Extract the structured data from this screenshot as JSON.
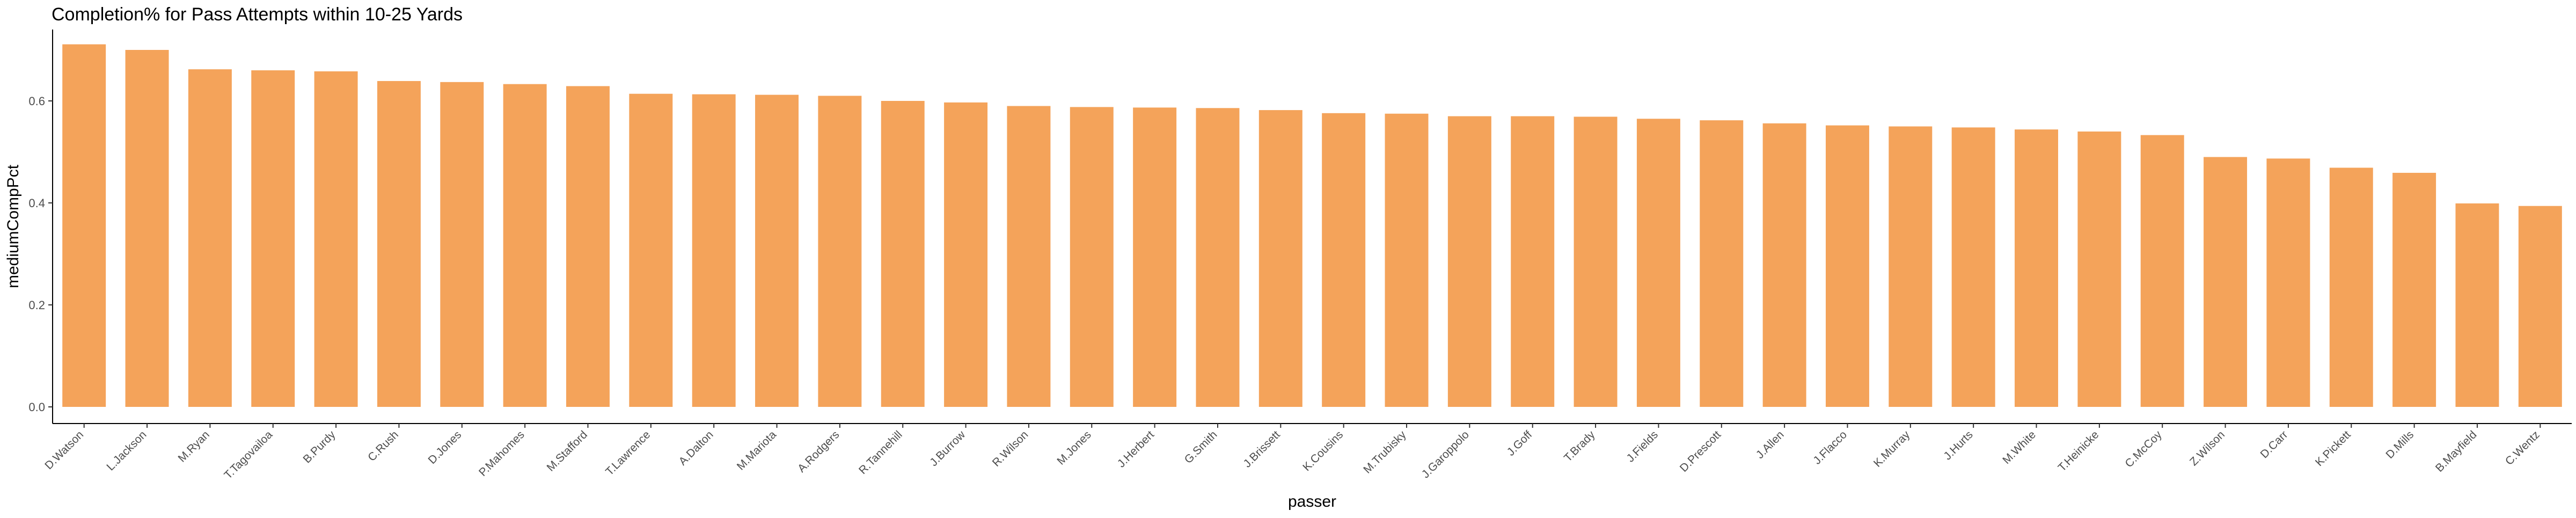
{
  "chart_data": {
    "type": "bar",
    "title": "Completion% for Pass Attempts within 10-25 Yards",
    "xlabel": "passer",
    "ylabel": "mediumCompPct",
    "ylim": [
      0,
      0.74
    ],
    "yticks": [
      "0.0",
      "0.2",
      "0.4",
      "0.6"
    ],
    "grid": false,
    "bar_color": "#F4A35A",
    "axis_color": "#000000",
    "categories": [
      "D.Watson",
      "L.Jackson",
      "M.Ryan",
      "T.Tagovailoa",
      "B.Purdy",
      "C.Rush",
      "D.Jones",
      "P.Mahomes",
      "M.Stafford",
      "T.Lawrence",
      "A.Dalton",
      "M.Mariota",
      "A.Rodgers",
      "R.Tannehill",
      "J.Burrow",
      "R.Wilson",
      "M.Jones",
      "J.Herbert",
      "G.Smith",
      "J.Brissett",
      "K.Cousins",
      "M.Trubisky",
      "J.Garoppolo",
      "J.Goff",
      "T.Brady",
      "J.Fields",
      "D.Prescott",
      "J.Allen",
      "J.Flacco",
      "K.Murray",
      "J.Hurts",
      "M.White",
      "T.Heinicke",
      "C.McCoy",
      "Z.Wilson",
      "D.Carr",
      "K.Pickett",
      "D.Mills",
      "B.Mayfield",
      "C.Wentz"
    ],
    "values": [
      0.711,
      0.7,
      0.662,
      0.66,
      0.658,
      0.639,
      0.637,
      0.633,
      0.629,
      0.614,
      0.613,
      0.612,
      0.61,
      0.6,
      0.597,
      0.59,
      0.588,
      0.587,
      0.586,
      0.582,
      0.576,
      0.575,
      0.57,
      0.57,
      0.569,
      0.565,
      0.562,
      0.556,
      0.552,
      0.55,
      0.548,
      0.544,
      0.54,
      0.533,
      0.49,
      0.487,
      0.469,
      0.459,
      0.399,
      0.394
    ]
  }
}
